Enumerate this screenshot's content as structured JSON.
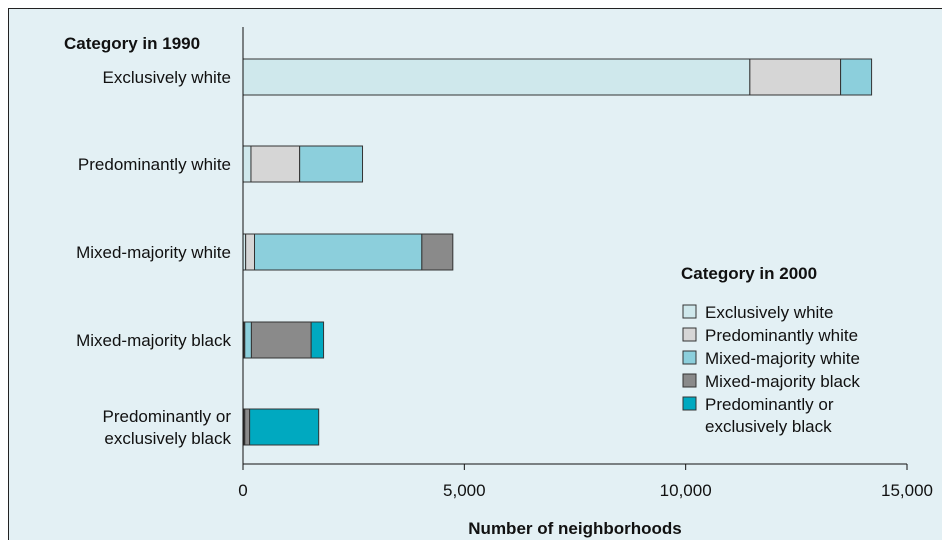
{
  "chart_data": {
    "type": "bar",
    "orientation": "horizontal",
    "stacked": true,
    "y_title": "Category in 1990",
    "xlabel": "Number of neighborhoods",
    "xlim": [
      0,
      15000
    ],
    "x_ticks": [
      0,
      5000,
      10000,
      15000
    ],
    "x_tick_labels": [
      "0",
      "5,000",
      "10,000",
      "15,000"
    ],
    "grid": false,
    "categories": [
      [
        "Exclusively white"
      ],
      [
        "Predominantly white"
      ],
      [
        "Mixed-majority white"
      ],
      [
        "Mixed-majority black"
      ],
      [
        "Predominantly or",
        "exclusively black"
      ]
    ],
    "legend": {
      "title": "Category in 2000",
      "placement": "right"
    },
    "series": [
      {
        "name": [
          "Exclusively white"
        ],
        "color": "#cfe8ec",
        "values": [
          11450,
          180,
          60,
          20,
          10
        ]
      },
      {
        "name": [
          "Predominantly white"
        ],
        "color": "#d6d6d6",
        "values": [
          2050,
          1100,
          200,
          20,
          10
        ]
      },
      {
        "name": [
          "Mixed-majority white"
        ],
        "color": "#8ccfdc",
        "values": [
          700,
          1420,
          3780,
          150,
          20
        ]
      },
      {
        "name": [
          "Mixed-majority black"
        ],
        "color": "#8a8a8a",
        "values": [
          0,
          0,
          700,
          1350,
          110
        ]
      },
      {
        "name": [
          "Predominantly or",
          "exclusively black"
        ],
        "color": "#00a9c0",
        "values": [
          0,
          0,
          0,
          280,
          1560
        ]
      }
    ]
  }
}
